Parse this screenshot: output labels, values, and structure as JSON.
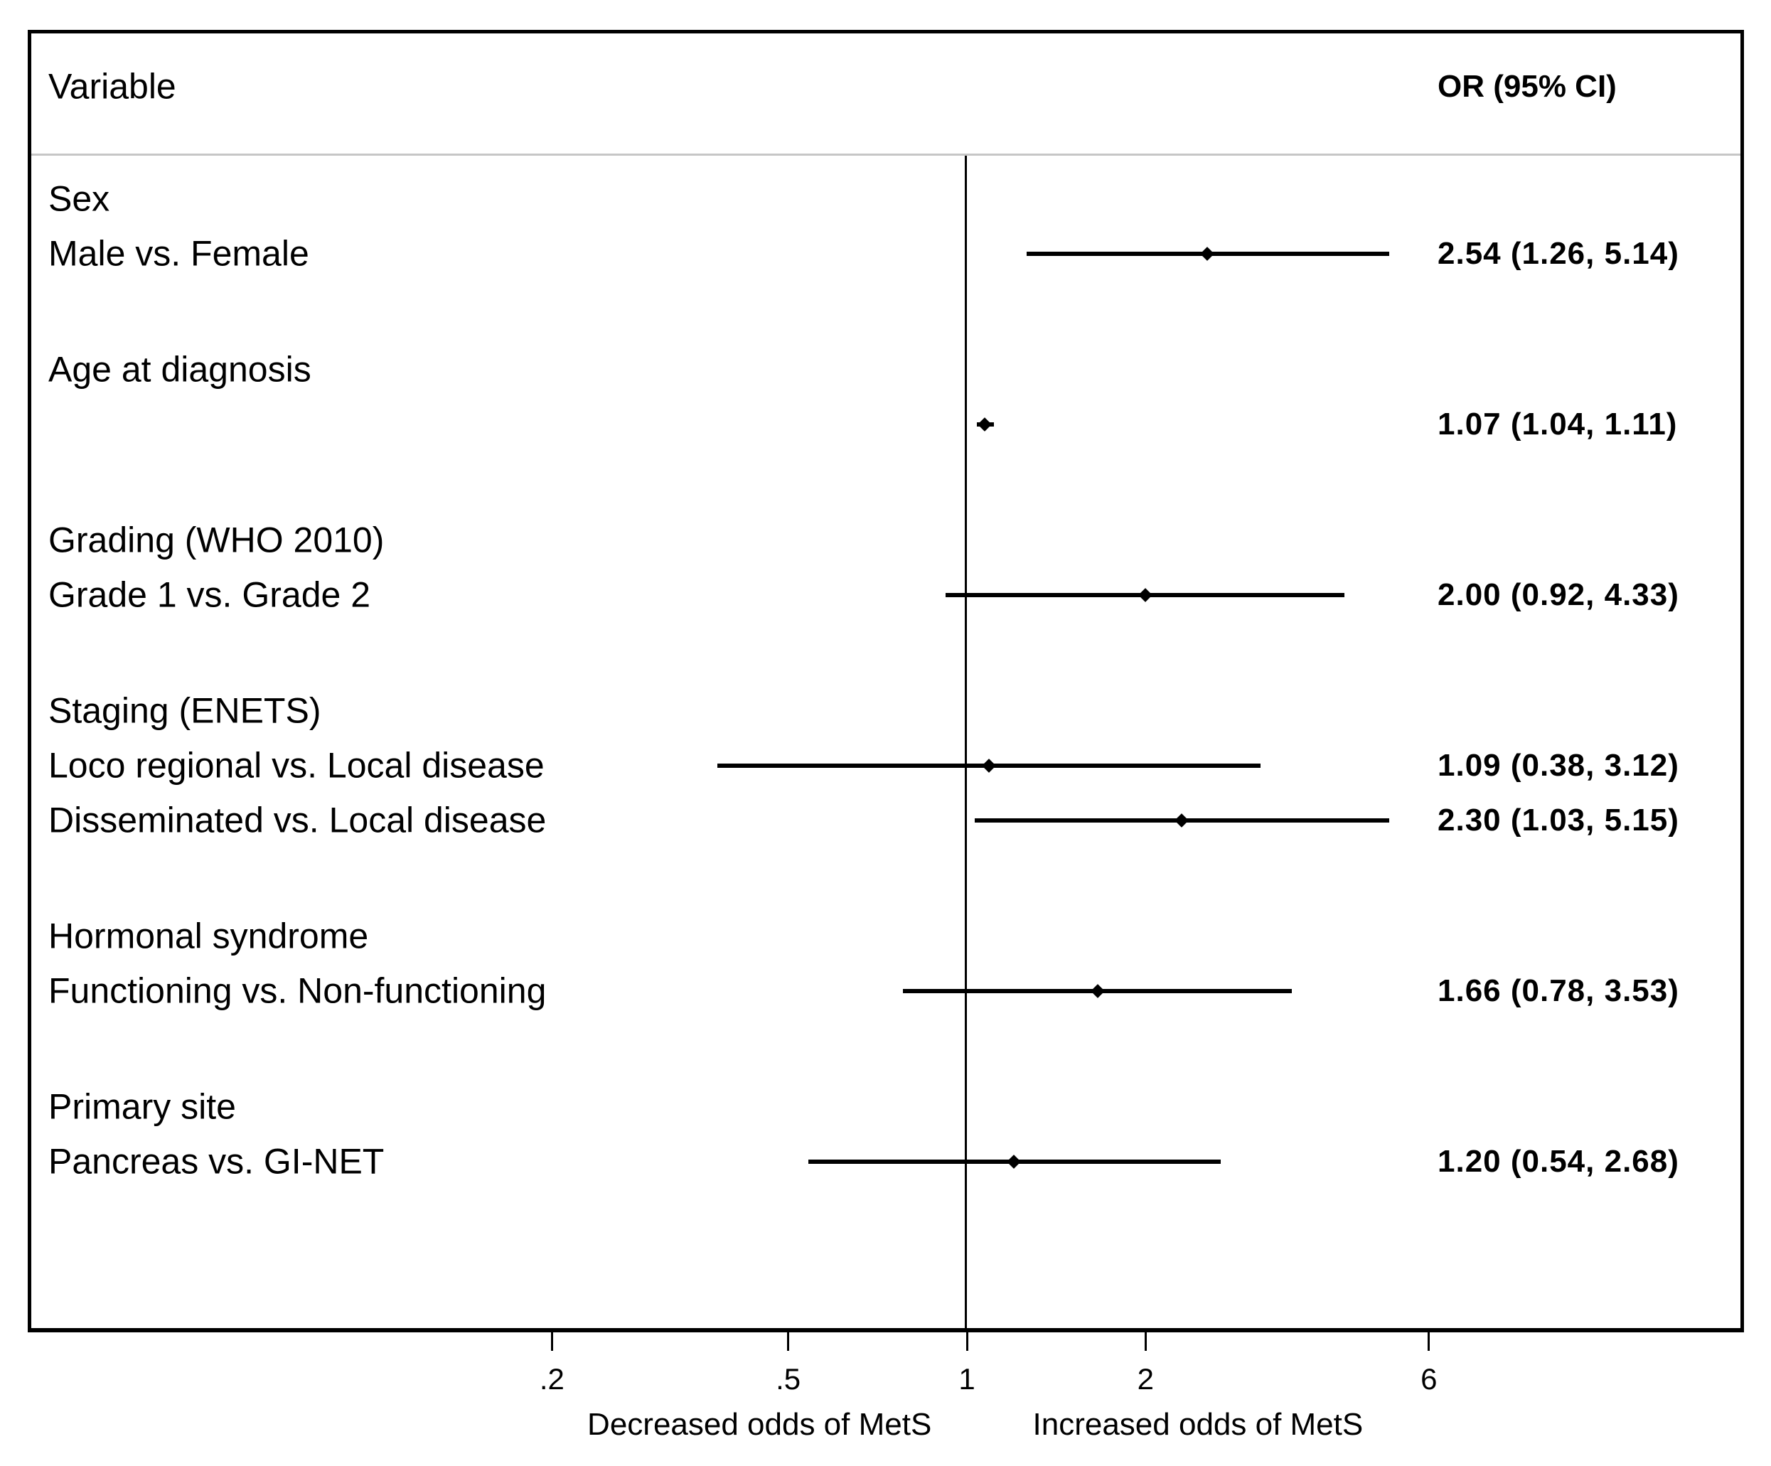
{
  "header": {
    "variable_label": "Variable",
    "or_label": "OR (95% CI)"
  },
  "chart_data": {
    "type": "forest",
    "x_axis": {
      "scale": "log",
      "ticks": [
        0.2,
        0.5,
        1,
        2,
        6
      ],
      "tick_labels": [
        ".2",
        ".5",
        "1",
        "2",
        "6"
      ],
      "reference_line": 1,
      "left_caption": "Decreased odds of MetS",
      "right_caption": "Increased odds of MetS"
    },
    "rows": [
      {
        "type": "group",
        "label": "Sex"
      },
      {
        "type": "item",
        "label": "Male vs. Female",
        "or": 2.54,
        "ci_low": 1.26,
        "ci_high": 5.14,
        "or_text": "2.54 (1.26, 5.14)"
      },
      {
        "type": "group",
        "label": "Age at diagnosis"
      },
      {
        "type": "item",
        "label": "",
        "or": 1.07,
        "ci_low": 1.04,
        "ci_high": 1.11,
        "or_text": "1.07 (1.04, 1.11)"
      },
      {
        "type": "group",
        "label": "Grading (WHO 2010)"
      },
      {
        "type": "item",
        "label": "Grade 1 vs. Grade 2",
        "or": 2.0,
        "ci_low": 0.92,
        "ci_high": 4.33,
        "or_text": "2.00 (0.92, 4.33)"
      },
      {
        "type": "group",
        "label": "Staging (ENETS)"
      },
      {
        "type": "item",
        "label": "Loco regional vs. Local disease",
        "or": 1.09,
        "ci_low": 0.38,
        "ci_high": 3.12,
        "or_text": "1.09 (0.38, 3.12)"
      },
      {
        "type": "item",
        "label": "Disseminated vs. Local disease",
        "or": 2.3,
        "ci_low": 1.03,
        "ci_high": 5.15,
        "or_text": "2.30 (1.03, 5.15)"
      },
      {
        "type": "group",
        "label": "Hormonal syndrome"
      },
      {
        "type": "item",
        "label": "Functioning vs. Non-functioning",
        "or": 1.66,
        "ci_low": 0.78,
        "ci_high": 3.53,
        "or_text": "1.66 (0.78, 3.53)"
      },
      {
        "type": "group",
        "label": "Primary site"
      },
      {
        "type": "item",
        "label": "Pancreas vs. GI-NET",
        "or": 1.2,
        "ci_low": 0.54,
        "ci_high": 2.68,
        "or_text": "1.20 (0.54, 2.68)"
      }
    ]
  },
  "colors": {
    "ink": "#000000",
    "separator": "#c6c6c6",
    "background": "#ffffff"
  }
}
